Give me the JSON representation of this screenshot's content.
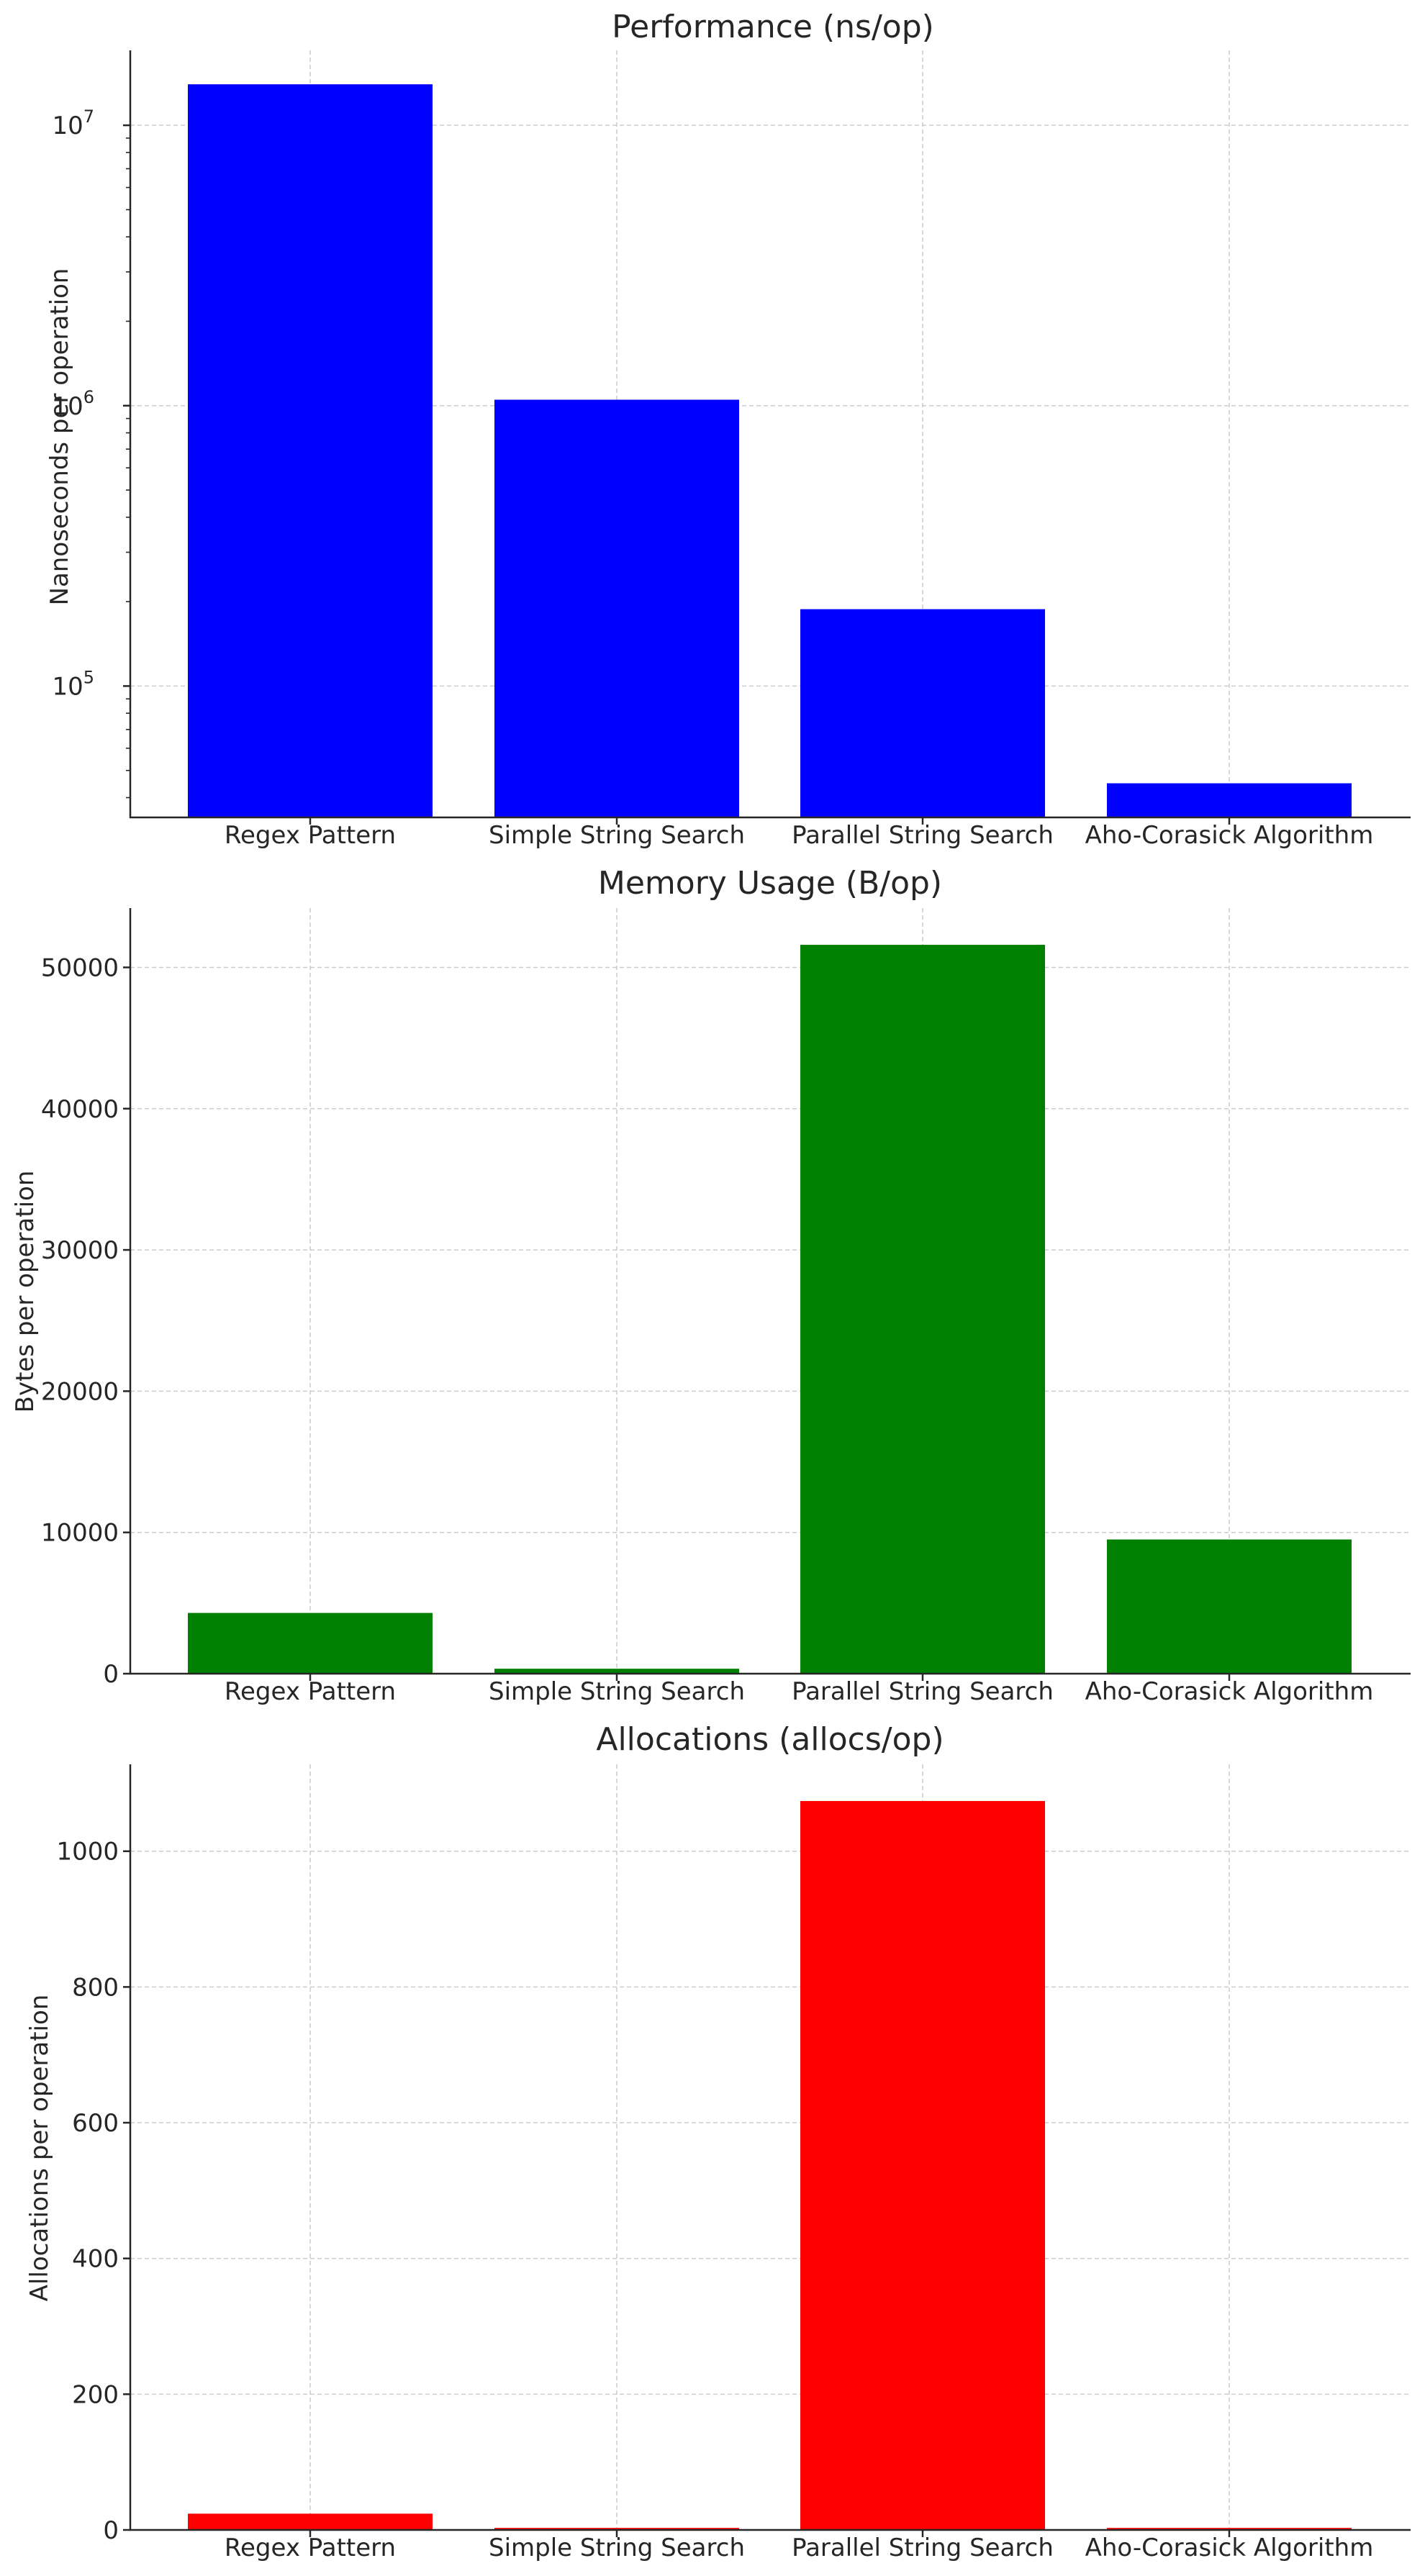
{
  "chart_data": [
    {
      "type": "bar",
      "title": "Performance (ns/op)",
      "xlabel": "",
      "ylabel": "Nanoseconds per operation",
      "yscale": "log",
      "ylim": [
        34000,
        18500000
      ],
      "ytick_labels": [
        {
          "base": "10",
          "exp": "5",
          "value": 100000
        },
        {
          "base": "10",
          "exp": "6",
          "value": 1000000
        },
        {
          "base": "10",
          "exp": "7",
          "value": 10000000
        }
      ],
      "categories": [
        "Regex Pattern",
        "Simple String Search",
        "Parallel String Search",
        "Aho-Corasick Algorithm"
      ],
      "values": [
        14000000,
        1050000,
        188000,
        45000
      ],
      "color": "#0000ff",
      "grid": true
    },
    {
      "type": "bar",
      "title": "Memory Usage (B/op)",
      "xlabel": "",
      "ylabel": "Bytes per operation",
      "yscale": "linear",
      "ylim": [
        0,
        54200
      ],
      "yticks": [
        "0",
        "10000",
        "20000",
        "30000",
        "40000",
        "50000"
      ],
      "categories": [
        "Regex Pattern",
        "Simple String Search",
        "Parallel String Search",
        "Aho-Corasick Algorithm"
      ],
      "values": [
        4300,
        350,
        51600,
        9500
      ],
      "color": "#008000",
      "grid": true
    },
    {
      "type": "bar",
      "title": "Allocations (allocs/op)",
      "xlabel": "",
      "ylabel": "Allocations per operation",
      "yscale": "linear",
      "ylim": [
        0,
        1128
      ],
      "yticks": [
        "0",
        "200",
        "400",
        "600",
        "800",
        "1000"
      ],
      "categories": [
        "Regex Pattern",
        "Simple String Search",
        "Parallel String Search",
        "Aho-Corasick Algorithm"
      ],
      "values": [
        24,
        3,
        1074,
        3
      ],
      "color": "#ff0000",
      "grid": true
    }
  ]
}
